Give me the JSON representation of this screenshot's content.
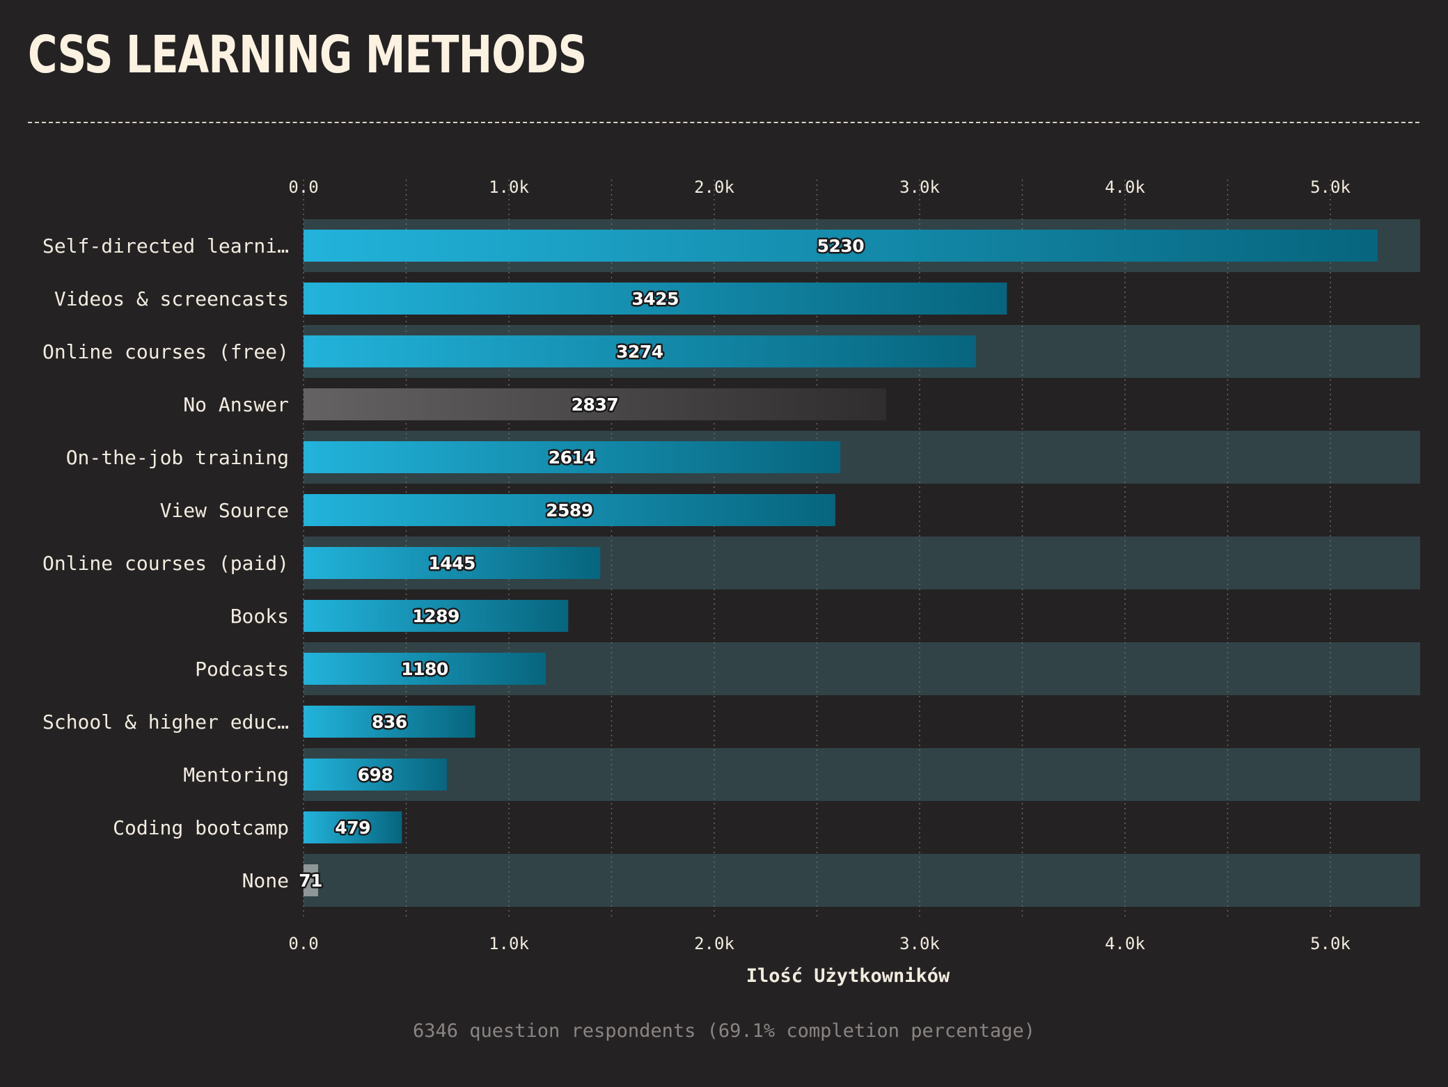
{
  "title": "CSS LEARNING METHODS",
  "footer_note": "6346 question respondents (69.1% completion percentage)",
  "colors": {
    "background": "#252223",
    "band": "#314347",
    "bar_start": "#22b3db",
    "bar_end": "#07657e",
    "no_answer_start": "#646262",
    "no_answer_end": "#302d2e",
    "grid": "#6c6767",
    "text": "#f2ece0"
  },
  "chart_data": {
    "type": "bar",
    "orientation": "horizontal",
    "categories": [
      "Self-directed learni…",
      "Videos & screencasts",
      "Online courses (free)",
      "No Answer",
      "On-the-job training",
      "View Source",
      "Online courses (paid)",
      "Books",
      "Podcasts",
      "School & higher educ…",
      "Mentoring",
      "Coding bootcamp",
      "None"
    ],
    "values": [
      5230,
      3425,
      3274,
      2837,
      2614,
      2589,
      1445,
      1289,
      1180,
      836,
      698,
      479,
      71
    ],
    "data_labels": [
      "5230",
      "3425",
      "3274",
      "2837",
      "2614",
      "2589",
      "1445",
      "1289",
      "1180",
      "836",
      "698",
      "479",
      "71"
    ],
    "xticks": [
      0,
      1000,
      2000,
      3000,
      4000,
      5000
    ],
    "xtick_labels": [
      "0.0",
      "1.0k",
      "2.0k",
      "3.0k",
      "4.0k",
      "5.0k"
    ],
    "xlim": [
      0,
      5440
    ],
    "xlabel": "Ilość Użytkowników",
    "ylabel": "",
    "grid": "vertical dotted",
    "axis_ticks": "top and bottom"
  }
}
